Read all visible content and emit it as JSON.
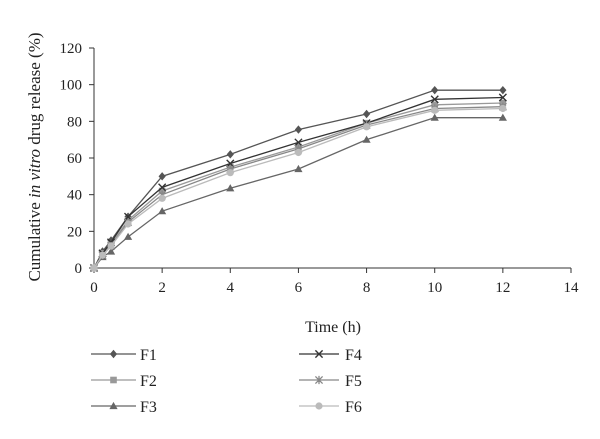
{
  "chart_data": {
    "type": "line",
    "xlabel": "Time (h)",
    "ylabel_parts": [
      "Cumulative ",
      "in vitro",
      " drug release (%)"
    ],
    "xlim": [
      0,
      14
    ],
    "ylim": [
      0,
      120
    ],
    "xticks": [
      0,
      2,
      4,
      6,
      8,
      10,
      12,
      14
    ],
    "yticks": [
      0,
      20,
      40,
      60,
      80,
      100,
      120
    ],
    "grid": false,
    "legend_position": "bottom",
    "x": [
      0,
      0.25,
      0.5,
      1,
      2,
      4,
      6,
      8,
      10,
      12
    ],
    "series": [
      {
        "name": "F1",
        "marker": "diamond",
        "color": "#555555",
        "values": [
          0,
          9,
          15,
          28,
          50,
          62,
          75.5,
          84,
          97,
          97
        ]
      },
      {
        "name": "F2",
        "marker": "square",
        "color": "#999999",
        "values": [
          0,
          8,
          13,
          26,
          42,
          55,
          66,
          79,
          89,
          90
        ]
      },
      {
        "name": "F3",
        "marker": "triangle",
        "color": "#666666",
        "values": [
          0,
          6,
          9,
          17,
          31,
          43.5,
          54,
          70,
          82,
          82
        ]
      },
      {
        "name": "F4",
        "marker": "x",
        "color": "#333333",
        "values": [
          0,
          8,
          14,
          28,
          44,
          57,
          68.5,
          79,
          92,
          93
        ]
      },
      {
        "name": "F5",
        "marker": "star",
        "color": "#888888",
        "values": [
          0,
          7,
          12,
          25,
          40,
          54,
          65,
          78,
          87,
          88
        ]
      },
      {
        "name": "F6",
        "marker": "circle",
        "color": "#bbbbbb",
        "values": [
          0,
          7,
          12,
          24,
          38,
          52,
          63,
          77,
          86,
          87
        ]
      }
    ]
  }
}
